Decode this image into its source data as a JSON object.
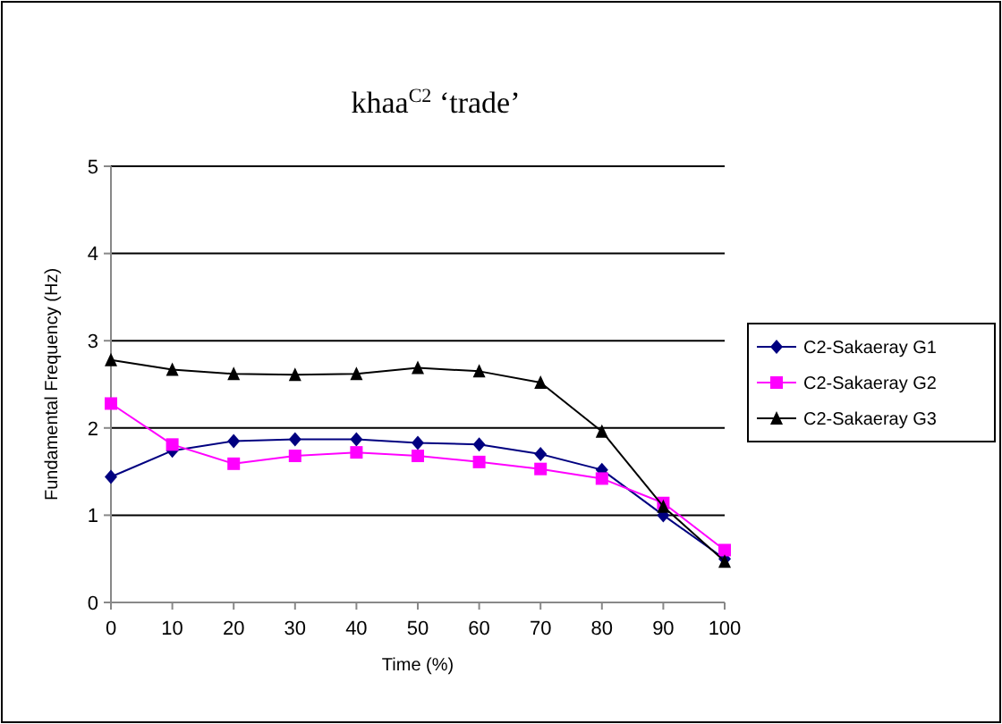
{
  "chart_data": {
    "type": "line",
    "title": "khaa$^{C2}$ ‘trade’",
    "xlabel": "Time (%)",
    "ylabel": "Fundamental Frequency (Hz)",
    "x": [
      0,
      10,
      20,
      30,
      40,
      50,
      60,
      70,
      80,
      90,
      100
    ],
    "xlim": [
      0,
      100
    ],
    "xticks": [
      0,
      10,
      20,
      30,
      40,
      50,
      60,
      70,
      80,
      90,
      100
    ],
    "ylim": [
      0,
      5
    ],
    "yticks": [
      0,
      1,
      2,
      3,
      4,
      5
    ],
    "grid": "y",
    "legend": "right",
    "series": [
      {
        "name": "C2-Sakaeray G1",
        "color": "#000080",
        "marker": "diamond",
        "values": [
          1.44,
          1.74,
          1.85,
          1.87,
          1.87,
          1.83,
          1.81,
          1.7,
          1.52,
          1.0,
          0.5
        ]
      },
      {
        "name": "C2-Sakaeray G2",
        "color": "#ff00ff",
        "marker": "square",
        "values": [
          2.28,
          1.81,
          1.59,
          1.68,
          1.72,
          1.68,
          1.61,
          1.53,
          1.42,
          1.14,
          0.6
        ]
      },
      {
        "name": "C2-Sakaeray G3",
        "color": "#000000",
        "marker": "triangle",
        "values": [
          2.78,
          2.67,
          2.62,
          2.61,
          2.62,
          2.69,
          2.65,
          2.52,
          1.96,
          1.1,
          0.47
        ]
      }
    ]
  }
}
